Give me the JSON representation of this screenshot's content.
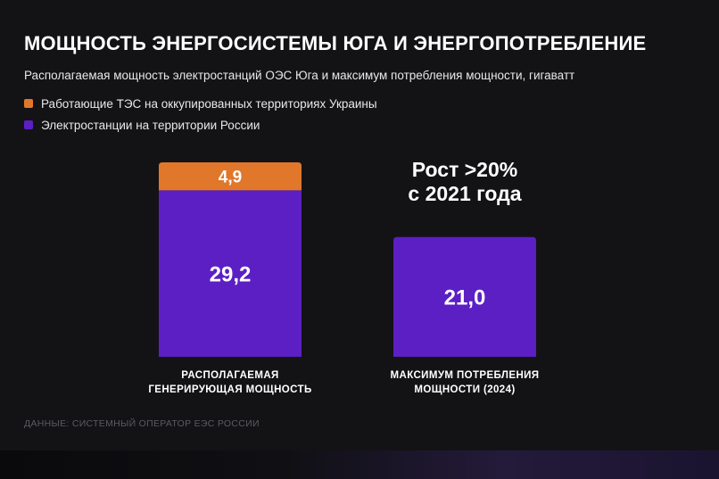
{
  "title": "МОЩНОСТЬ ЭНЕРГОСИСТЕМЫ ЮГА И ЭНЕРГОПОТРЕБЛЕНИЕ",
  "subtitle": "Располагаемая мощность электростанций ОЭС Юга и максимум потребления мощности, гигаватт",
  "source": "ДАННЫЕ: СИСТЕМНЫЙ ОПЕРАТОР ЕЭС РОССИИ",
  "colors": {
    "orange": "#e0772a",
    "purple": "#5c1fc4"
  },
  "chart_data": {
    "type": "bar",
    "stacked": true,
    "categories": [
      [
        "РАСПОЛАГАЕМАЯ",
        "ГЕНЕРИРУЮЩАЯ МОЩНОСТЬ"
      ],
      [
        "МАКСИМУМ ПОТРЕБЛЕНИЯ",
        "МОЩНОСТИ (2024)"
      ]
    ],
    "series": [
      {
        "name": "Электростанции на территории России",
        "color": "#5c1fc4",
        "values": [
          29.2,
          21.0
        ],
        "labels": [
          "29,2",
          "21,0"
        ]
      },
      {
        "name": "Работающие ТЭС на оккупированных территориях Украины",
        "color": "#e0772a",
        "values": [
          4.9,
          0
        ],
        "labels": [
          "4,9",
          ""
        ]
      }
    ],
    "annotations": [
      {
        "category_index": 1,
        "lines": [
          "Рост >20%",
          "с 2021 года"
        ]
      }
    ],
    "legend": {
      "position": "top-left"
    },
    "ylim": [
      0,
      34.1
    ],
    "grid": false
  }
}
